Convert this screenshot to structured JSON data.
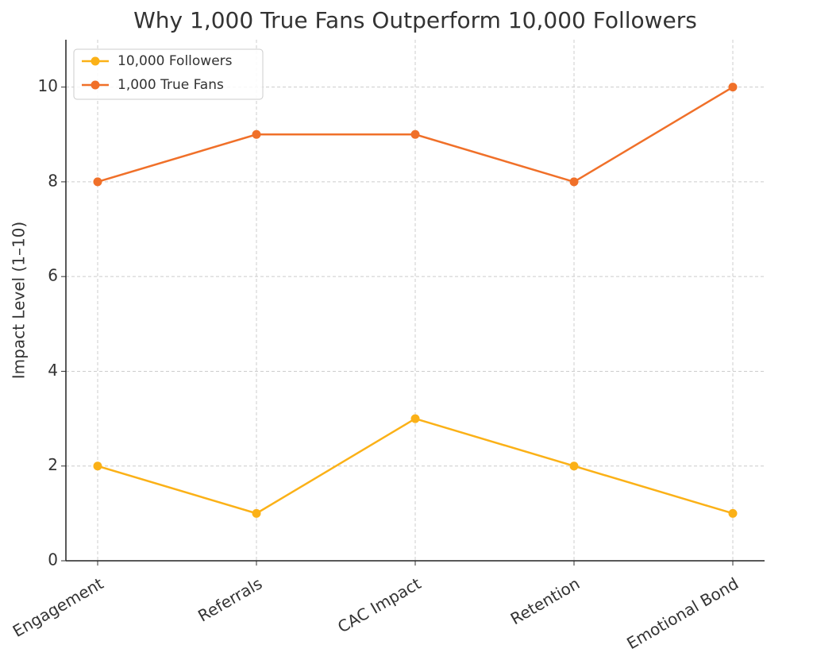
{
  "chart_data": {
    "type": "line",
    "title": "Why 1,000 True Fans Outperform 10,000 Followers",
    "y_label": "Impact Level (1–10)",
    "categories": [
      "Engagement",
      "Referrals",
      "CAC Impact",
      "Retention",
      "Emotional Bond"
    ],
    "series": [
      {
        "name": "10,000 Followers",
        "color": "#fbb117",
        "values": [
          2,
          1,
          3,
          2,
          1
        ]
      },
      {
        "name": "1,000 True Fans",
        "color": "#f07029",
        "values": [
          8,
          9,
          9,
          8,
          10
        ]
      }
    ],
    "ylim": [
      0,
      11
    ],
    "yticks": [
      0,
      2,
      4,
      6,
      8,
      10
    ],
    "grid": true,
    "legend": "upper-left"
  }
}
